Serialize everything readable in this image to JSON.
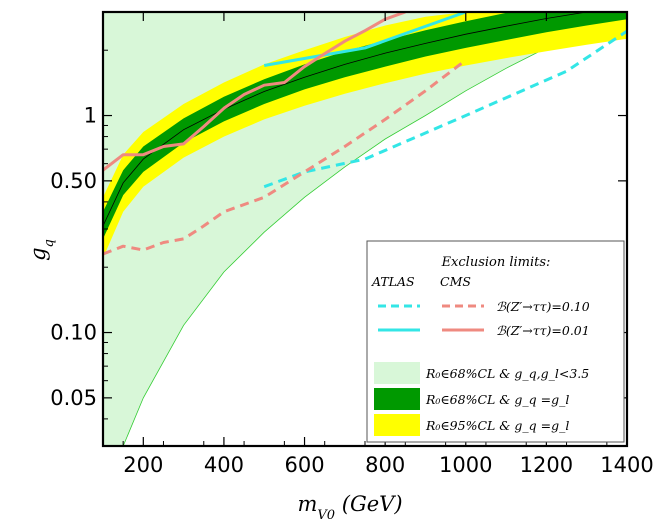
{
  "chart_data": {
    "type": "line",
    "xlabel": "m_{V0} (GeV)",
    "ylabel": "g_q",
    "x_scale": "linear",
    "y_scale": "log",
    "xlim": [
      100,
      1400
    ],
    "ylim": [
      0.03,
      3.0
    ],
    "x_ticks": [
      {
        "value": 200,
        "label": "200"
      },
      {
        "value": 400,
        "label": "400"
      },
      {
        "value": 600,
        "label": "600"
      },
      {
        "value": 800,
        "label": "800"
      },
      {
        "value": 1000,
        "label": "1000"
      },
      {
        "value": 1200,
        "label": "1200"
      },
      {
        "value": 1400,
        "label": "1400"
      }
    ],
    "y_ticks": [
      {
        "value": 0.05,
        "label": "0.05"
      },
      {
        "value": 0.1,
        "label": "0.10"
      },
      {
        "value": 0.5,
        "label": "0.50"
      },
      {
        "value": 1,
        "label": "1"
      }
    ],
    "colors": {
      "light_green": "#d8f7d8",
      "light_green_edge": "#33cc33",
      "dark_green": "#009900",
      "yellow": "#ffff00",
      "atlas": "#33e6e6",
      "cms": "#ef8a80",
      "frame": "#000000"
    },
    "bands": [
      {
        "name": "light_green",
        "x": [
          100,
          150,
          200,
          300,
          400,
          500,
          600,
          700,
          800,
          900,
          1000,
          1100,
          1200,
          1300,
          1400
        ],
        "upper": [
          3.0,
          3.0,
          3.0,
          3.0,
          3.0,
          3.0,
          3.0,
          3.0,
          3.0,
          3.0,
          3.0,
          3.0,
          3.0,
          3.0,
          3.0
        ],
        "lower": [
          0.03,
          0.03,
          0.05,
          0.108,
          0.19,
          0.29,
          0.42,
          0.58,
          0.78,
          1.0,
          1.3,
          1.65,
          2.05,
          2.5,
          3.0
        ]
      },
      {
        "name": "yellow",
        "x": [
          100,
          150,
          200,
          300,
          400,
          500,
          600,
          700,
          800,
          900,
          1000,
          1100,
          1200,
          1300,
          1400
        ],
        "upper": [
          0.42,
          0.66,
          0.84,
          1.13,
          1.42,
          1.72,
          2.0,
          2.3,
          2.6,
          2.85,
          3.0,
          3.0,
          3.0,
          3.0,
          3.0
        ],
        "lower": [
          0.22,
          0.36,
          0.47,
          0.64,
          0.8,
          0.96,
          1.11,
          1.26,
          1.41,
          1.56,
          1.7,
          1.84,
          1.98,
          2.12,
          2.26
        ]
      },
      {
        "name": "dark_green",
        "x": [
          100,
          150,
          200,
          300,
          400,
          500,
          600,
          700,
          800,
          900,
          1000,
          1100,
          1200,
          1300,
          1400
        ],
        "upper": [
          0.36,
          0.56,
          0.72,
          0.97,
          1.22,
          1.47,
          1.72,
          1.98,
          2.22,
          2.47,
          2.72,
          2.97,
          3.0,
          3.0,
          3.0
        ],
        "lower": [
          0.27,
          0.43,
          0.55,
          0.75,
          0.94,
          1.13,
          1.32,
          1.5,
          1.68,
          1.87,
          2.05,
          2.23,
          2.42,
          2.6,
          2.78
        ]
      }
    ],
    "center_line": {
      "x": [
        100,
        150,
        200,
        300,
        400,
        500,
        600,
        700,
        800,
        900,
        1000,
        1100,
        1200,
        1300,
        1400
      ],
      "y": [
        0.31,
        0.49,
        0.63,
        0.86,
        1.07,
        1.29,
        1.5,
        1.72,
        1.94,
        2.15,
        2.37,
        2.58,
        2.8,
        3.0,
        3.0
      ]
    },
    "series": [
      {
        "experiment": "ATLAS",
        "limit": "B = 0.10",
        "style": "dashed",
        "color": "#33e6e6",
        "x": [
          500,
          600,
          750,
          1000,
          1250,
          1400
        ],
        "y": [
          0.47,
          0.55,
          0.63,
          1.0,
          1.6,
          2.45
        ]
      },
      {
        "experiment": "ATLAS",
        "limit": "B = 0.01",
        "style": "solid",
        "color": "#33e6e6",
        "x": [
          500,
          750,
          1000
        ],
        "y": [
          1.7,
          2.05,
          3.0
        ]
      },
      {
        "experiment": "CMS",
        "limit": "B = 0.10",
        "style": "dashed",
        "color": "#ef8a80",
        "x": [
          100,
          150,
          200,
          250,
          300,
          350,
          400,
          500,
          600,
          700,
          800,
          900,
          1000
        ],
        "y": [
          0.23,
          0.25,
          0.24,
          0.26,
          0.27,
          0.31,
          0.36,
          0.42,
          0.55,
          0.72,
          0.96,
          1.3,
          1.8
        ]
      },
      {
        "experiment": "CMS",
        "limit": "B = 0.01",
        "style": "solid",
        "color": "#ef8a80",
        "x": [
          100,
          150,
          200,
          250,
          300,
          350,
          400,
          450,
          500,
          550,
          600,
          650,
          700,
          750,
          800,
          850
        ],
        "y": [
          0.56,
          0.66,
          0.66,
          0.72,
          0.74,
          0.89,
          1.08,
          1.25,
          1.38,
          1.42,
          1.68,
          1.93,
          2.2,
          2.46,
          2.78,
          3.0
        ]
      }
    ],
    "legend": {
      "position": "bottom-right",
      "title": "Exclusion limits:",
      "columns": [
        "ATLAS",
        "CMS"
      ],
      "limit_labels": [
        "ℬ(Z′→ττ)=0.10",
        "ℬ(Z′→ττ)=0.01"
      ],
      "band_labels": [
        "R₀∈68%CL & g_q,g_l<3.5",
        "R₀∈68%CL & g_q =g_l",
        "R₀∈95%CL & g_q =g_l"
      ]
    }
  }
}
